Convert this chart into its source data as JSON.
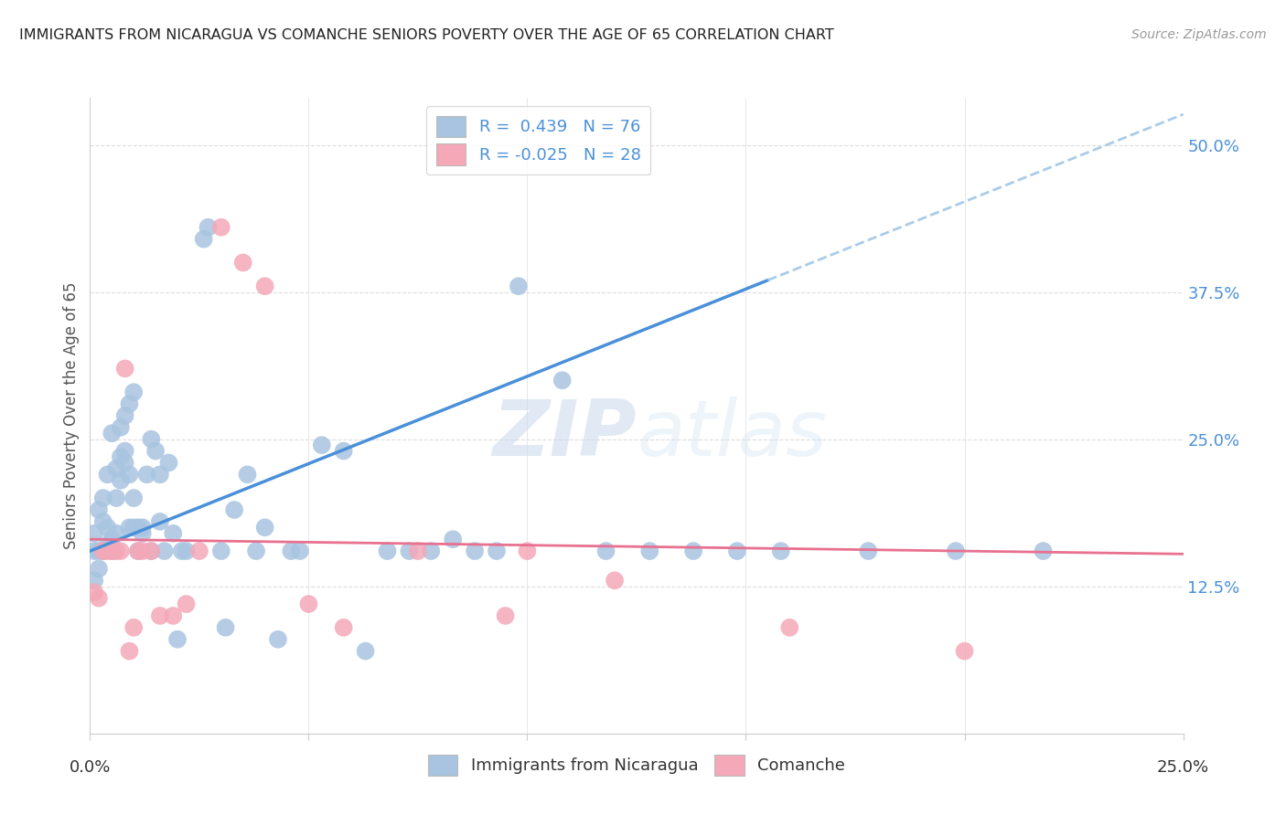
{
  "title": "IMMIGRANTS FROM NICARAGUA VS COMANCHE SENIORS POVERTY OVER THE AGE OF 65 CORRELATION CHART",
  "source": "Source: ZipAtlas.com",
  "ylabel": "Seniors Poverty Over the Age of 65",
  "yticks": [
    "12.5%",
    "25.0%",
    "37.5%",
    "50.0%"
  ],
  "ytick_vals": [
    0.125,
    0.25,
    0.375,
    0.5
  ],
  "xmin": 0.0,
  "xmax": 0.25,
  "ymin": 0.0,
  "ymax": 0.54,
  "blue_color": "#a8c4e0",
  "pink_color": "#f4a8b8",
  "blue_line_color": "#4a90d9",
  "pink_line_color": "#e87090",
  "blue_scatter": [
    [
      0.001,
      0.155
    ],
    [
      0.001,
      0.13
    ],
    [
      0.001,
      0.17
    ],
    [
      0.002,
      0.14
    ],
    [
      0.002,
      0.155
    ],
    [
      0.002,
      0.19
    ],
    [
      0.003,
      0.155
    ],
    [
      0.003,
      0.18
    ],
    [
      0.003,
      0.2
    ],
    [
      0.004,
      0.16
    ],
    [
      0.004,
      0.175
    ],
    [
      0.004,
      0.22
    ],
    [
      0.005,
      0.155
    ],
    [
      0.005,
      0.165
    ],
    [
      0.005,
      0.255
    ],
    [
      0.006,
      0.17
    ],
    [
      0.006,
      0.2
    ],
    [
      0.006,
      0.225
    ],
    [
      0.007,
      0.235
    ],
    [
      0.007,
      0.26
    ],
    [
      0.007,
      0.215
    ],
    [
      0.008,
      0.27
    ],
    [
      0.008,
      0.23
    ],
    [
      0.008,
      0.24
    ],
    [
      0.009,
      0.28
    ],
    [
      0.009,
      0.22
    ],
    [
      0.009,
      0.175
    ],
    [
      0.01,
      0.29
    ],
    [
      0.01,
      0.175
    ],
    [
      0.01,
      0.2
    ],
    [
      0.011,
      0.175
    ],
    [
      0.011,
      0.155
    ],
    [
      0.012,
      0.17
    ],
    [
      0.012,
      0.175
    ],
    [
      0.013,
      0.22
    ],
    [
      0.014,
      0.25
    ],
    [
      0.014,
      0.155
    ],
    [
      0.015,
      0.24
    ],
    [
      0.016,
      0.18
    ],
    [
      0.016,
      0.22
    ],
    [
      0.017,
      0.155
    ],
    [
      0.018,
      0.23
    ],
    [
      0.019,
      0.17
    ],
    [
      0.02,
      0.08
    ],
    [
      0.021,
      0.155
    ],
    [
      0.022,
      0.155
    ],
    [
      0.026,
      0.42
    ],
    [
      0.027,
      0.43
    ],
    [
      0.03,
      0.155
    ],
    [
      0.031,
      0.09
    ],
    [
      0.033,
      0.19
    ],
    [
      0.036,
      0.22
    ],
    [
      0.038,
      0.155
    ],
    [
      0.04,
      0.175
    ],
    [
      0.043,
      0.08
    ],
    [
      0.046,
      0.155
    ],
    [
      0.048,
      0.155
    ],
    [
      0.053,
      0.245
    ],
    [
      0.058,
      0.24
    ],
    [
      0.063,
      0.07
    ],
    [
      0.068,
      0.155
    ],
    [
      0.073,
      0.155
    ],
    [
      0.078,
      0.155
    ],
    [
      0.083,
      0.165
    ],
    [
      0.088,
      0.155
    ],
    [
      0.093,
      0.155
    ],
    [
      0.098,
      0.38
    ],
    [
      0.108,
      0.3
    ],
    [
      0.118,
      0.155
    ],
    [
      0.128,
      0.155
    ],
    [
      0.138,
      0.155
    ],
    [
      0.148,
      0.155
    ],
    [
      0.158,
      0.155
    ],
    [
      0.178,
      0.155
    ],
    [
      0.198,
      0.155
    ],
    [
      0.218,
      0.155
    ]
  ],
  "pink_scatter": [
    [
      0.001,
      0.12
    ],
    [
      0.002,
      0.115
    ],
    [
      0.003,
      0.155
    ],
    [
      0.004,
      0.155
    ],
    [
      0.005,
      0.155
    ],
    [
      0.006,
      0.155
    ],
    [
      0.007,
      0.155
    ],
    [
      0.008,
      0.31
    ],
    [
      0.009,
      0.07
    ],
    [
      0.01,
      0.09
    ],
    [
      0.011,
      0.155
    ],
    [
      0.012,
      0.155
    ],
    [
      0.014,
      0.155
    ],
    [
      0.016,
      0.1
    ],
    [
      0.019,
      0.1
    ],
    [
      0.022,
      0.11
    ],
    [
      0.025,
      0.155
    ],
    [
      0.03,
      0.43
    ],
    [
      0.035,
      0.4
    ],
    [
      0.04,
      0.38
    ],
    [
      0.05,
      0.11
    ],
    [
      0.058,
      0.09
    ],
    [
      0.075,
      0.155
    ],
    [
      0.095,
      0.1
    ],
    [
      0.1,
      0.155
    ],
    [
      0.12,
      0.13
    ],
    [
      0.16,
      0.09
    ],
    [
      0.2,
      0.07
    ]
  ],
  "R_blue": 0.439,
  "N_blue": 76,
  "R_pink": -0.025,
  "N_pink": 28,
  "legend_blue_label": "Immigrants from Nicaragua",
  "legend_pink_label": "Comanche",
  "watermark_zip": "ZIP",
  "watermark_atlas": "atlas",
  "background_color": "#ffffff",
  "grid_color": "#dddddd"
}
